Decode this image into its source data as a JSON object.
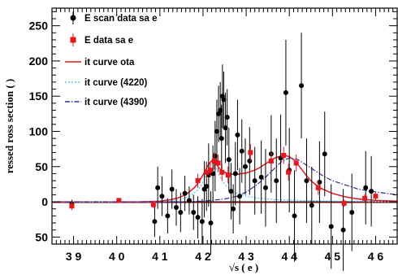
{
  "chart_data": {
    "type": "scatter",
    "xlabel": "√s ( e )",
    "ylabel": "ressed    ross section  (     )",
    "xlim": [
      3.85,
      4.65
    ],
    "ylim": [
      -60,
      275
    ],
    "x_ticks": [
      {
        "value": 3.9,
        "label": "3 9"
      },
      {
        "value": 4.0,
        "label": "4 0"
      },
      {
        "value": 4.1,
        "label": "4 1"
      },
      {
        "value": 4.2,
        "label": "4 2"
      },
      {
        "value": 4.3,
        "label": "4 3"
      },
      {
        "value": 4.4,
        "label": "4 4"
      },
      {
        "value": 4.5,
        "label": "4 5"
      },
      {
        "value": 4.6,
        "label": "4 6"
      }
    ],
    "y_ticks": [
      {
        "value": 250,
        "label": "250"
      },
      {
        "value": 200,
        "label": "200"
      },
      {
        "value": 150,
        "label": "150"
      },
      {
        "value": 100,
        "label": "100"
      },
      {
        "value": 50,
        "label": "50"
      },
      {
        "value": 0,
        "label": "0"
      },
      {
        "value": -50,
        "label": "50"
      }
    ],
    "legend_position": "top-left",
    "legend": [
      {
        "label": "E       scan data sa  e",
        "marker": "circle",
        "color": "#000000"
      },
      {
        "label": "E        data sa  e",
        "marker": "square",
        "color": "#e8161b"
      },
      {
        "label": "it curve    ota",
        "marker": "solid-line",
        "color": "#e8161b"
      },
      {
        "label": "it curve      (4220)",
        "marker": "dotted-line",
        "color": "#55c8ee"
      },
      {
        "label": "it curve      (4390)",
        "marker": "dashdot-line",
        "color": "#2e2ea8"
      }
    ],
    "series": [
      {
        "label": "E       scan data sa  e",
        "marker": "circle",
        "color": "#000000",
        "points": [
          {
            "x": 3.896,
            "y": -3,
            "err": 6
          },
          {
            "x": 4.088,
            "y": -28,
            "err": 22
          },
          {
            "x": 4.095,
            "y": 20,
            "err": 30
          },
          {
            "x": 4.105,
            "y": 8,
            "err": 28
          },
          {
            "x": 4.118,
            "y": -20,
            "err": 25
          },
          {
            "x": 4.128,
            "y": 18,
            "err": 28
          },
          {
            "x": 4.138,
            "y": -8,
            "err": 26
          },
          {
            "x": 4.148,
            "y": -15,
            "err": 28
          },
          {
            "x": 4.158,
            "y": 12,
            "err": 25
          },
          {
            "x": 4.168,
            "y": 2,
            "err": 20
          },
          {
            "x": 4.178,
            "y": -15,
            "err": 25
          },
          {
            "x": 4.188,
            "y": -22,
            "err": 30
          },
          {
            "x": 4.198,
            "y": -28,
            "err": 32
          },
          {
            "x": 4.203,
            "y": 18,
            "err": 40
          },
          {
            "x": 4.208,
            "y": 22,
            "err": 35
          },
          {
            "x": 4.213,
            "y": 38,
            "err": 45
          },
          {
            "x": 4.218,
            "y": -30,
            "err": 45
          },
          {
            "x": 4.223,
            "y": 40,
            "err": 40
          },
          {
            "x": 4.228,
            "y": 65,
            "err": 50
          },
          {
            "x": 4.232,
            "y": 100,
            "err": 45
          },
          {
            "x": 4.236,
            "y": 125,
            "err": 40
          },
          {
            "x": 4.24,
            "y": 130,
            "err": 40
          },
          {
            "x": 4.243,
            "y": 90,
            "err": 48
          },
          {
            "x": 4.245,
            "y": 150,
            "err": 45
          },
          {
            "x": 4.248,
            "y": 145,
            "err": 40
          },
          {
            "x": 4.252,
            "y": 105,
            "err": 50
          },
          {
            "x": 4.256,
            "y": 120,
            "err": 40
          },
          {
            "x": 4.26,
            "y": 60,
            "err": 45
          },
          {
            "x": 4.265,
            "y": 15,
            "err": 40
          },
          {
            "x": 4.27,
            "y": -10,
            "err": 35
          },
          {
            "x": 4.275,
            "y": 40,
            "err": 45
          },
          {
            "x": 4.28,
            "y": 95,
            "err": 50
          },
          {
            "x": 4.285,
            "y": 8,
            "err": 40
          },
          {
            "x": 4.29,
            "y": 72,
            "err": 45
          },
          {
            "x": 4.298,
            "y": 50,
            "err": 40
          },
          {
            "x": 4.308,
            "y": 58,
            "err": 48
          },
          {
            "x": 4.32,
            "y": 30,
            "err": 48
          },
          {
            "x": 4.335,
            "y": 35,
            "err": 52
          },
          {
            "x": 4.345,
            "y": 20,
            "err": 55
          },
          {
            "x": 4.358,
            "y": 68,
            "err": 55
          },
          {
            "x": 4.37,
            "y": 30,
            "err": 60
          },
          {
            "x": 4.38,
            "y": 62,
            "err": 62
          },
          {
            "x": 4.392,
            "y": 155,
            "err": 75
          },
          {
            "x": 4.4,
            "y": 45,
            "err": 60
          },
          {
            "x": 4.412,
            "y": -20,
            "err": 65
          },
          {
            "x": 4.428,
            "y": 165,
            "err": 75
          },
          {
            "x": 4.44,
            "y": 30,
            "err": 60
          },
          {
            "x": 4.452,
            "y": -5,
            "err": 55
          },
          {
            "x": 4.47,
            "y": 28,
            "err": 58
          },
          {
            "x": 4.482,
            "y": 68,
            "err": 60
          },
          {
            "x": 4.497,
            "y": -35,
            "err": 60
          },
          {
            "x": 4.525,
            "y": -40,
            "err": 58
          },
          {
            "x": 4.545,
            "y": -15,
            "err": 55
          },
          {
            "x": 4.577,
            "y": 20,
            "err": 52
          },
          {
            "x": 4.59,
            "y": 15,
            "err": 50
          }
        ]
      },
      {
        "label": "E        data sa  e",
        "marker": "square",
        "color": "#e8161b",
        "points": [
          {
            "x": 3.896,
            "y": -6,
            "err": 6
          },
          {
            "x": 4.005,
            "y": 2,
            "err": 3
          },
          {
            "x": 4.085,
            "y": -4,
            "err": 5
          },
          {
            "x": 4.188,
            "y": 30,
            "err": 10
          },
          {
            "x": 4.208,
            "y": 42,
            "err": 10
          },
          {
            "x": 4.217,
            "y": 45,
            "err": 10
          },
          {
            "x": 4.226,
            "y": 58,
            "err": 12
          },
          {
            "x": 4.235,
            "y": 55,
            "err": 12
          },
          {
            "x": 4.244,
            "y": 42,
            "err": 12
          },
          {
            "x": 4.258,
            "y": 38,
            "err": 12
          },
          {
            "x": 4.31,
            "y": 70,
            "err": 12
          },
          {
            "x": 4.358,
            "y": 58,
            "err": 12
          },
          {
            "x": 4.387,
            "y": 66,
            "err": 12
          },
          {
            "x": 4.398,
            "y": 42,
            "err": 12
          },
          {
            "x": 4.416,
            "y": 55,
            "err": 12
          },
          {
            "x": 4.467,
            "y": 20,
            "err": 10
          },
          {
            "x": 4.527,
            "y": -2,
            "err": 5
          },
          {
            "x": 4.575,
            "y": 5,
            "err": 6
          },
          {
            "x": 4.6,
            "y": 8,
            "err": 6
          }
        ]
      }
    ],
    "curves": [
      {
        "label": "it curve    ota",
        "style": "solid",
        "color": "#e8161b",
        "x": [
          3.86,
          3.9,
          3.95,
          4.0,
          4.05,
          4.08,
          4.1,
          4.12,
          4.14,
          4.16,
          4.18,
          4.19,
          4.2,
          4.21,
          4.215,
          4.22,
          4.225,
          4.23,
          4.235,
          4.24,
          4.25,
          4.26,
          4.27,
          4.28,
          4.29,
          4.3,
          4.31,
          4.32,
          4.33,
          4.34,
          4.35,
          4.36,
          4.37,
          4.38,
          4.39,
          4.4,
          4.41,
          4.42,
          4.43,
          4.44,
          4.45,
          4.47,
          4.5,
          4.53,
          4.56,
          4.6,
          4.65
        ],
        "y": [
          0,
          0,
          0,
          0,
          0,
          0.5,
          1,
          2.5,
          5,
          10,
          20,
          28,
          38,
          50,
          55,
          58,
          57,
          54,
          50,
          46,
          42,
          40,
          39,
          39,
          40,
          41,
          43,
          45,
          48,
          52,
          56,
          60,
          63,
          65,
          66,
          64,
          60,
          53,
          45,
          37,
          30,
          20,
          12,
          7,
          4,
          2,
          1
        ]
      },
      {
        "label": "it curve      (4220)",
        "style": "dotted",
        "color": "#55c8ee",
        "x": [
          3.86,
          4.1,
          4.14,
          4.17,
          4.19,
          4.2,
          4.21,
          4.215,
          4.22,
          4.225,
          4.23,
          4.24,
          4.25,
          4.27,
          4.3,
          4.33,
          4.37,
          4.42,
          4.5,
          4.65
        ],
        "y": [
          0,
          0,
          2,
          8,
          18,
          28,
          42,
          50,
          55,
          54,
          48,
          35,
          25,
          14,
          8,
          5,
          3,
          2,
          1,
          0
        ]
      },
      {
        "label": "it curve      (4390)",
        "style": "dashdot",
        "color": "#2e2ea8",
        "x": [
          3.86,
          4.15,
          4.2,
          4.25,
          4.28,
          4.3,
          4.32,
          4.34,
          4.36,
          4.38,
          4.39,
          4.4,
          4.42,
          4.44,
          4.46,
          4.48,
          4.5,
          4.53,
          4.56,
          4.6,
          4.65
        ],
        "y": [
          0,
          0,
          1,
          4,
          8,
          14,
          22,
          32,
          44,
          56,
          60,
          62,
          60,
          52,
          44,
          36,
          30,
          24,
          18,
          14,
          10
        ]
      }
    ],
    "reference_lines": [
      {
        "y": 0,
        "color": "#000000",
        "style": "solid"
      },
      {
        "y": 0,
        "color": "#8b1a1a",
        "style": "solid"
      }
    ]
  }
}
